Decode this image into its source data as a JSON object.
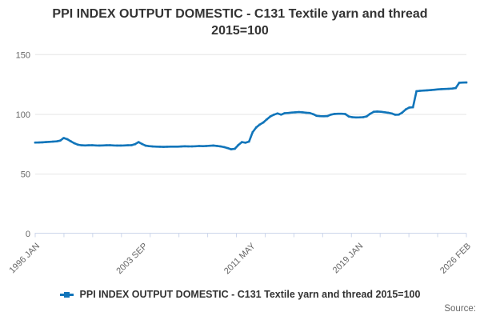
{
  "chart_data": {
    "type": "line",
    "title": "PPI INDEX OUTPUT DOMESTIC - C131 Textile yarn and thread 2015=100",
    "xlabel": "",
    "ylabel": "",
    "ylim": [
      0,
      150
    ],
    "y_tick_labels": [
      "150",
      "100",
      "50",
      "0"
    ],
    "x_tick_labels": [
      "1996 JAN",
      "2003 SEP",
      "2011 MAY",
      "2019 JAN",
      "2026 FEB"
    ],
    "x_start": "1996 JAN",
    "x_end": "2026 FEB",
    "frequency": "quarterly",
    "grid": "horizontal",
    "legend_position": "bottom",
    "colors": {
      "line": "#1175ba",
      "gridline": "#e6e6e6",
      "axis": "#ccd6eb",
      "tick_label": "#666666",
      "title": "#333333"
    },
    "series": [
      {
        "name": "PPI INDEX OUTPUT DOMESTIC - C131 Textile yarn and thread 2015=100",
        "values": [
          76.4,
          76.5,
          76.6,
          76.8,
          77.0,
          77.2,
          77.4,
          78.0,
          80.2,
          79.2,
          77.5,
          75.8,
          74.6,
          74.1,
          74.0,
          74.1,
          74.2,
          74.0,
          73.9,
          74.0,
          74.1,
          74.2,
          74.0,
          73.9,
          73.9,
          74.0,
          74.1,
          74.2,
          75.0,
          76.8,
          75.2,
          73.8,
          73.4,
          73.1,
          73.0,
          72.9,
          72.8,
          72.9,
          73.0,
          73.0,
          73.0,
          73.1,
          73.3,
          73.2,
          73.2,
          73.3,
          73.5,
          73.4,
          73.5,
          73.7,
          73.9,
          73.6,
          73.2,
          72.6,
          71.8,
          70.8,
          71.2,
          74.3,
          76.8,
          76.3,
          77.2,
          85.0,
          89.0,
          91.5,
          93.2,
          95.8,
          98.3,
          99.8,
          100.8,
          99.8,
          101.0,
          101.2,
          101.5,
          101.7,
          101.9,
          101.7,
          101.4,
          101.2,
          100.2,
          98.8,
          98.5,
          98.4,
          98.6,
          99.8,
          100.4,
          100.5,
          100.5,
          100.3,
          98.2,
          97.6,
          97.4,
          97.5,
          97.6,
          98.3,
          100.5,
          102.2,
          102.4,
          102.2,
          101.8,
          101.4,
          100.8,
          99.7,
          99.8,
          101.5,
          104.2,
          105.7,
          105.9,
          119.4,
          119.7,
          119.9,
          120.1,
          120.3,
          120.6,
          120.9,
          121.1,
          121.3,
          121.4,
          121.6,
          122.0,
          126.5,
          126.6,
          126.7
        ]
      }
    ]
  },
  "legend": {
    "label": "PPI INDEX OUTPUT DOMESTIC - C131 Textile yarn and thread 2015=100"
  },
  "footer": {
    "source_label": "Source:"
  }
}
